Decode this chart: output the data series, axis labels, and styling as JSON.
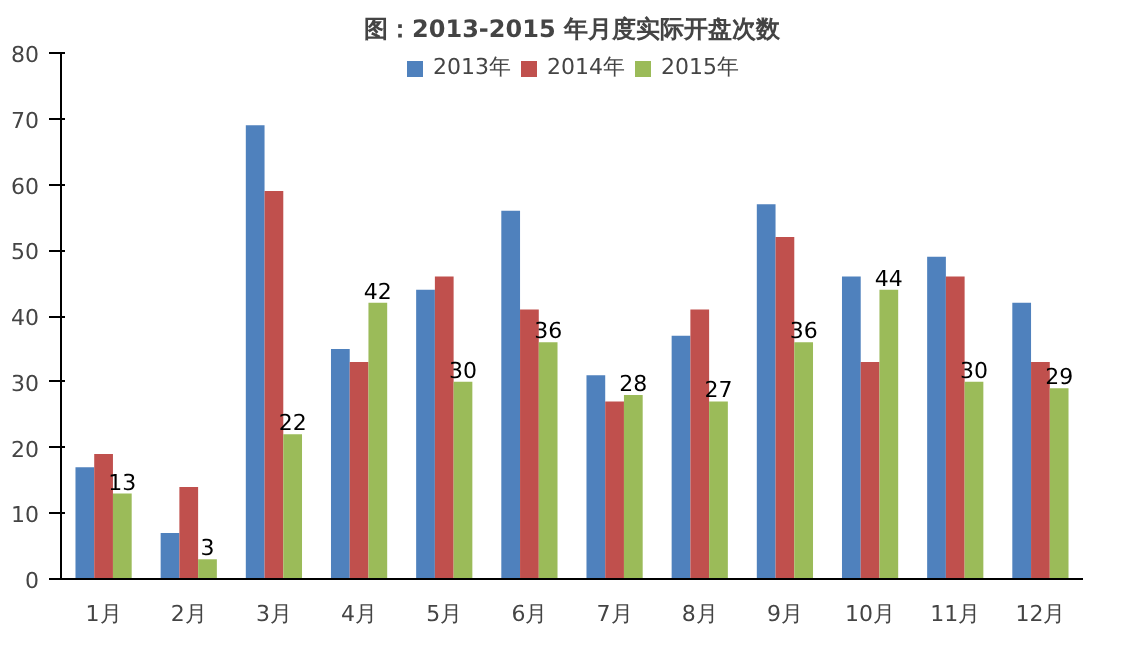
{
  "chart_data": {
    "type": "bar",
    "title": "图：2013-2015 年月度实际开盘次数",
    "categories": [
      "1月",
      "2月",
      "3月",
      "4月",
      "5月",
      "6月",
      "7月",
      "8月",
      "9月",
      "10月",
      "11月",
      "12月"
    ],
    "series": [
      {
        "name": "2013年",
        "color": "#4f81bd",
        "values": [
          17,
          7,
          69,
          35,
          44,
          56,
          31,
          37,
          57,
          46,
          49,
          42
        ]
      },
      {
        "name": "2014年",
        "color": "#c0504d",
        "values": [
          19,
          14,
          59,
          33,
          46,
          41,
          27,
          41,
          52,
          33,
          46,
          33
        ]
      },
      {
        "name": "2015年",
        "color": "#9bbb59",
        "values": [
          13,
          3,
          22,
          42,
          30,
          36,
          28,
          27,
          36,
          44,
          30,
          29
        ],
        "value_labels": [
          "13",
          "3",
          "22",
          "42",
          "30",
          "36",
          "28",
          "27",
          "36",
          "44",
          "30",
          "29"
        ]
      }
    ],
    "ylim": [
      0,
      80
    ],
    "yticks": [
      0,
      10,
      20,
      30,
      40,
      50,
      60,
      70,
      80
    ],
    "grid": false,
    "legend": "top"
  }
}
